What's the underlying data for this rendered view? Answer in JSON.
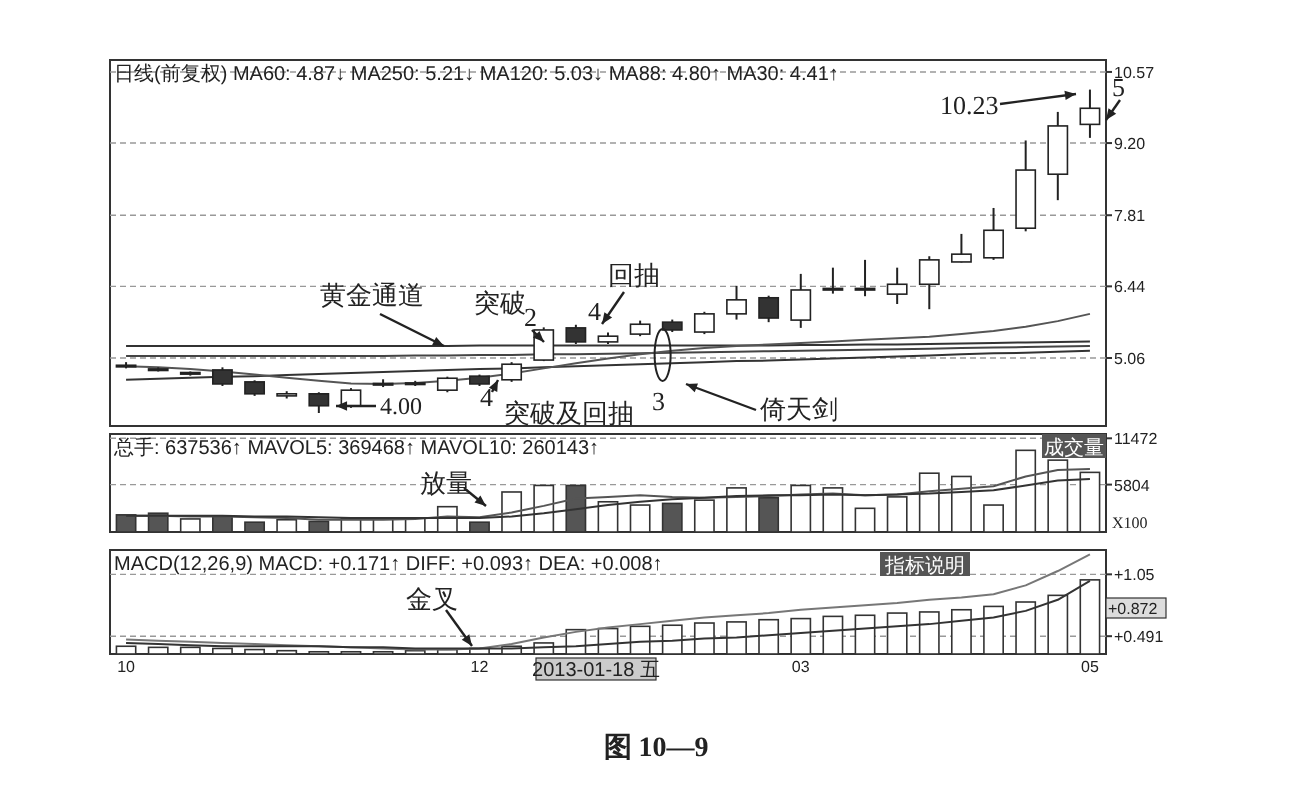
{
  "chart_data": [
    {
      "type": "candlestick",
      "title": "日线(前复权) MA60: 4.87↓ MA250: 5.21↓ MA120: 5.03↓ MA88: 4.80↑ MA30: 4.41↑",
      "categories": [
        "10",
        null,
        null,
        null,
        null,
        null,
        null,
        null,
        null,
        null,
        null,
        "12",
        null,
        null,
        null,
        null,
        null,
        null,
        null,
        null,
        null,
        "03",
        null,
        null,
        null,
        null,
        null,
        null,
        null,
        null,
        "05"
      ],
      "ohlc": [
        [
          4.9,
          4.98,
          4.86,
          4.92
        ],
        [
          4.85,
          4.88,
          4.8,
          4.83
        ],
        [
          4.78,
          4.8,
          4.72,
          4.76
        ],
        [
          4.83,
          4.88,
          4.52,
          4.56
        ],
        [
          4.6,
          4.63,
          4.33,
          4.37
        ],
        [
          4.33,
          4.42,
          4.28,
          4.37
        ],
        [
          4.37,
          4.4,
          4.0,
          4.14
        ],
        [
          4.14,
          4.48,
          4.1,
          4.44
        ],
        [
          4.55,
          4.65,
          4.5,
          4.57
        ],
        [
          4.57,
          4.62,
          4.52,
          4.58
        ],
        [
          4.44,
          4.7,
          4.4,
          4.67
        ],
        [
          4.71,
          4.74,
          4.52,
          4.56
        ],
        [
          4.64,
          4.98,
          4.6,
          4.94
        ],
        [
          5.02,
          5.65,
          5.0,
          5.6
        ],
        [
          5.64,
          5.7,
          5.33,
          5.37
        ],
        [
          5.37,
          5.55,
          5.33,
          5.48
        ],
        [
          5.52,
          5.78,
          5.48,
          5.71
        ],
        [
          5.75,
          5.8,
          5.56,
          5.6
        ],
        [
          5.56,
          5.95,
          5.52,
          5.91
        ],
        [
          5.91,
          6.45,
          5.8,
          6.18
        ],
        [
          6.22,
          6.26,
          5.75,
          5.83
        ],
        [
          5.79,
          6.68,
          5.64,
          6.37
        ],
        [
          6.37,
          6.8,
          6.3,
          6.4
        ],
        [
          6.37,
          6.95,
          6.25,
          6.4
        ],
        [
          6.29,
          6.8,
          6.1,
          6.48
        ],
        [
          6.48,
          7.02,
          6.0,
          6.95
        ],
        [
          6.91,
          7.45,
          6.9,
          7.06
        ],
        [
          6.99,
          7.95,
          6.95,
          7.52
        ],
        [
          7.56,
          9.25,
          7.5,
          8.68
        ],
        [
          8.6,
          9.8,
          8.1,
          9.53
        ],
        [
          9.56,
          10.23,
          9.3,
          9.87
        ]
      ],
      "colors": [
        "#ffffff",
        "#ffffff",
        "#ffffff",
        "#333333",
        "#333333",
        "#ffffff",
        "#333333",
        "#ffffff",
        "#ffffff",
        "#ffffff",
        "#ffffff",
        "#333333",
        "#ffffff",
        "#ffffff",
        "#333333",
        "#ffffff",
        "#ffffff",
        "#333333",
        "#ffffff",
        "#ffffff",
        "#333333",
        "#ffffff",
        "#ffffff",
        "#ffffff",
        "#ffffff",
        "#ffffff",
        "#ffffff",
        "#ffffff",
        "#ffffff",
        "#ffffff",
        "#ffffff"
      ],
      "series": [
        {
          "type": "line",
          "color": "#333333",
          "values": [
            5.29,
            5.29,
            5.29,
            5.29,
            5.29,
            5.29,
            5.29,
            5.29,
            5.29,
            5.29,
            5.29,
            5.3,
            5.3,
            5.3,
            5.3,
            5.3,
            5.3,
            5.3,
            5.3,
            5.3,
            5.3,
            5.31,
            5.31,
            5.32,
            5.32,
            5.33,
            5.34,
            5.35,
            5.36,
            5.37,
            5.38
          ]
        },
        {
          "type": "line",
          "color": "#444444",
          "values": [
            5.1,
            5.1,
            5.1,
            5.1,
            5.1,
            5.1,
            5.1,
            5.1,
            5.1,
            5.11,
            5.11,
            5.12,
            5.12,
            5.13,
            5.13,
            5.14,
            5.15,
            5.16,
            5.17,
            5.18,
            5.19,
            5.2,
            5.21,
            5.22,
            5.23,
            5.24,
            5.25,
            5.26,
            5.27,
            5.28,
            5.29
          ]
        },
        {
          "type": "line",
          "color": "#333333",
          "values": [
            4.64,
            4.66,
            4.68,
            4.7,
            4.71,
            4.73,
            4.75,
            4.77,
            4.79,
            4.81,
            4.83,
            4.85,
            4.86,
            4.88,
            4.9,
            4.92,
            4.94,
            4.96,
            4.98,
            5.0,
            5.01,
            5.03,
            5.05,
            5.07,
            5.09,
            5.11,
            5.13,
            5.15,
            5.16,
            5.18,
            5.2
          ]
        },
        {
          "type": "line",
          "color": "#555555",
          "values": [
            4.9,
            4.88,
            4.85,
            4.8,
            4.74,
            4.68,
            4.62,
            4.57,
            4.56,
            4.58,
            4.62,
            4.68,
            4.76,
            4.86,
            4.96,
            5.05,
            5.13,
            5.2,
            5.25,
            5.29,
            5.32,
            5.35,
            5.38,
            5.41,
            5.44,
            5.47,
            5.52,
            5.58,
            5.66,
            5.77,
            5.91
          ]
        }
      ],
      "ylim": [
        3.75,
        10.8
      ],
      "yticks": [
        5.06,
        6.44,
        7.81,
        {
          "value": 9.2,
          "label": "9.20"
        },
        10.57
      ],
      "grid": "y",
      "tick_labels": "y",
      "annotations": [
        "黄金通道",
        "突破",
        "2",
        "回抽",
        "4",
        "4.00",
        "4",
        "突破及回抽",
        "3",
        "倚天剑",
        "10.23",
        "5"
      ]
    },
    {
      "type": "bar",
      "title": "总手: 637536↑ MAVOL5: 369468↑ MAVOL10: 260143↑",
      "categories": [
        "10",
        null,
        null,
        null,
        null,
        null,
        null,
        null,
        null,
        null,
        null,
        "12",
        null,
        null,
        null,
        null,
        null,
        null,
        null,
        null,
        null,
        "03",
        null,
        null,
        null,
        null,
        null,
        null,
        null,
        null,
        "05"
      ],
      "series": [
        {
          "type": "bar",
          "colors": [
            "#555555",
            "#555555",
            "#ffffff",
            "#555555",
            "#555555",
            "#ffffff",
            "#555555",
            "#ffffff",
            "#ffffff",
            "#ffffff",
            "#ffffff",
            "#555555",
            "#ffffff",
            "#ffffff",
            "#555555",
            "#ffffff",
            "#ffffff",
            "#555555",
            "#ffffff",
            "#ffffff",
            "#555555",
            "#ffffff",
            "#ffffff",
            "#ffffff",
            "#ffffff",
            "#ffffff",
            "#ffffff",
            "#ffffff",
            "#ffffff",
            "#ffffff",
            "#ffffff"
          ],
          "values": [
            2100,
            2300,
            1600,
            1900,
            1200,
            1500,
            1300,
            1600,
            1600,
            1700,
            3100,
            1200,
            4900,
            5700,
            5700,
            3700,
            3300,
            3500,
            3900,
            5400,
            4200,
            5700,
            5400,
            2900,
            4300,
            7200,
            6800,
            3300,
            10000,
            8800,
            7300
          ]
        },
        {
          "type": "line",
          "color": "#555555",
          "values": [
            2000,
            2000,
            1900,
            1900,
            1800,
            1700,
            1500,
            1500,
            1500,
            1600,
            1900,
            1800,
            2400,
            3200,
            4100,
            4300,
            4500,
            4300,
            4200,
            4300,
            4400,
            4600,
            4700,
            4500,
            4600,
            5000,
            5300,
            5600,
            6800,
            7600,
            7700
          ]
        },
        {
          "type": "line",
          "color": "#333333",
          "values": [
            2000,
            2000,
            2000,
            2000,
            1900,
            1900,
            1800,
            1700,
            1700,
            1700,
            1700,
            1700,
            1900,
            2300,
            2800,
            3300,
            3700,
            4000,
            4200,
            4400,
            4500,
            4500,
            4600,
            4500,
            4600,
            4700,
            4900,
            5100,
            5700,
            6300,
            6500
          ]
        }
      ],
      "ylim": [
        0,
        12000
      ],
      "yticks": [
        5804,
        11472
      ],
      "grid": "y",
      "tick_labels": "y",
      "annotations": [
        "放量",
        "X100",
        "成交量"
      ]
    },
    {
      "type": "bar",
      "title": "MACD(12,26,9) MACD: +0.171↑ DIFF: +0.093↑ DEA: +0.008↑",
      "categories": [
        "10",
        null,
        null,
        null,
        null,
        null,
        null,
        null,
        null,
        null,
        null,
        "12",
        null,
        null,
        null,
        null,
        null,
        null,
        null,
        null,
        null,
        "03",
        null,
        null,
        null,
        null,
        null,
        null,
        null,
        null,
        "05"
      ],
      "series": [
        {
          "type": "bar",
          "color": "#ffffff",
          "values": [
            0.4,
            0.39,
            0.39,
            0.38,
            0.37,
            0.36,
            0.35,
            0.35,
            0.35,
            0.36,
            0.37,
            0.38,
            0.4,
            0.43,
            0.55,
            0.56,
            0.58,
            0.59,
            0.61,
            0.62,
            0.64,
            0.65,
            0.67,
            0.68,
            0.7,
            0.71,
            0.73,
            0.76,
            0.8,
            0.86,
            1.0
          ]
        },
        {
          "type": "line",
          "color": "#777777",
          "values": [
            0.46,
            0.45,
            0.44,
            0.43,
            0.42,
            0.41,
            0.4,
            0.39,
            0.38,
            0.37,
            0.37,
            0.38,
            0.42,
            0.48,
            0.53,
            0.57,
            0.6,
            0.63,
            0.66,
            0.68,
            0.7,
            0.73,
            0.75,
            0.77,
            0.79,
            0.82,
            0.84,
            0.87,
            0.95,
            1.08,
            1.23
          ]
        },
        {
          "type": "line",
          "color": "#333333",
          "values": [
            0.43,
            0.42,
            0.41,
            0.4,
            0.4,
            0.4,
            0.4,
            0.39,
            0.39,
            0.38,
            0.38,
            0.38,
            0.38,
            0.39,
            0.4,
            0.42,
            0.44,
            0.45,
            0.47,
            0.48,
            0.5,
            0.52,
            0.54,
            0.56,
            0.58,
            0.6,
            0.63,
            0.66,
            0.72,
            0.82,
            0.99
          ]
        }
      ],
      "ylim": [
        0.33,
        1.27
      ],
      "yticks": [
        {
          "value": 0.491,
          "label": "+0.491"
        },
        {
          "value": 1.05,
          "label": "+1.05"
        }
      ],
      "grid": "y",
      "annotations": [
        "金叉",
        "+0.872",
        "指标说明",
        "2013-01-18 五",
        "图 10—9"
      ]
    }
  ]
}
